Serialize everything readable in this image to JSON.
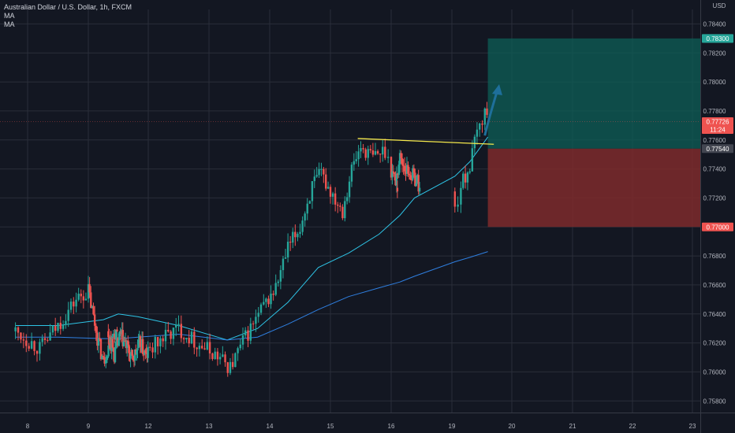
{
  "header": {
    "symbol": "Australian Dollar / U.S. Dollar, 1h, FXCM",
    "indicators": [
      "MA",
      "MA"
    ]
  },
  "price_axis": {
    "currency": "USD"
  },
  "colors": {
    "background": "#131722",
    "grid": "#2a2e39",
    "up": "#26a69a",
    "down": "#ef5350",
    "ma_fast": "#2ec4e6",
    "ma_slow": "#2f7fe0",
    "trendline": "#f5e94c",
    "profit_zone": "#0d5f57",
    "loss_zone": "#7e2a2c",
    "arrow": "#1e6f9a",
    "axis_text": "#b2b5be"
  },
  "chart_data": {
    "type": "candlestick",
    "title": "Australian Dollar / U.S. Dollar, 1h, FXCM",
    "x_ticks": [
      "8",
      "9",
      "12",
      "13",
      "14",
      "15",
      "16",
      "19",
      "20",
      "21",
      "22",
      "23"
    ],
    "y_ticks": [
      "0.75800",
      "0.76000",
      "0.76200",
      "0.76400",
      "0.76600",
      "0.76800",
      "0.77000",
      "0.77200",
      "0.77400",
      "0.77600",
      "0.77800",
      "0.78000",
      "0.78200",
      "0.78400"
    ],
    "ylim": [
      0.7572,
      0.785
    ],
    "grid": true,
    "price_path_days": [
      [
        7.8,
        0.7628
      ],
      [
        8.2,
        0.7616
      ],
      [
        8.5,
        0.7632
      ],
      [
        8.8,
        0.765
      ],
      [
        9.0,
        0.7656
      ],
      [
        9.3,
        0.7624
      ],
      [
        9.5,
        0.7607
      ],
      [
        9.8,
        0.7628
      ],
      [
        10.0,
        0.7626
      ],
      [
        10.3,
        0.7612
      ],
      [
        10.6,
        0.7625
      ],
      [
        10.9,
        0.7618
      ],
      [
        11.2,
        0.7608
      ],
      [
        11.6,
        0.762
      ],
      [
        11.9,
        0.761
      ],
      [
        12.2,
        0.7622
      ],
      [
        12.5,
        0.763
      ],
      [
        12.8,
        0.762
      ],
      [
        13.1,
        0.7612
      ],
      [
        13.35,
        0.7603
      ],
      [
        13.6,
        0.7624
      ],
      [
        13.9,
        0.7645
      ],
      [
        14.1,
        0.7658
      ],
      [
        14.3,
        0.7685
      ],
      [
        14.5,
        0.77
      ],
      [
        14.7,
        0.7728
      ],
      [
        14.85,
        0.7736
      ],
      [
        15.0,
        0.7725
      ],
      [
        15.2,
        0.7712
      ],
      [
        15.35,
        0.774
      ],
      [
        15.5,
        0.7755
      ],
      [
        15.7,
        0.7748
      ],
      [
        15.9,
        0.7753
      ],
      [
        16.0,
        0.774
      ],
      [
        16.15,
        0.7732
      ],
      [
        16.3,
        0.7748
      ],
      [
        16.5,
        0.774
      ],
      [
        16.7,
        0.7736
      ],
      [
        16.9,
        0.7732
      ],
      [
        17.05,
        0.772
      ],
      [
        19.05,
        0.7712
      ],
      [
        19.15,
        0.7728
      ],
      [
        19.3,
        0.7742
      ],
      [
        19.42,
        0.7765
      ],
      [
        19.55,
        0.778
      ],
      [
        19.62,
        0.7773
      ]
    ],
    "series": [
      {
        "name": "MA",
        "type": "line",
        "points": [
          [
            7.8,
            0.7632
          ],
          [
            8.5,
            0.7632
          ],
          [
            9.5,
            0.7636
          ],
          [
            10.5,
            0.764
          ],
          [
            11.5,
            0.7638
          ],
          [
            12.5,
            0.7632
          ],
          [
            13.3,
            0.7622
          ],
          [
            13.8,
            0.763
          ],
          [
            14.3,
            0.7648
          ],
          [
            14.8,
            0.7672
          ],
          [
            15.3,
            0.7682
          ],
          [
            15.8,
            0.7695
          ],
          [
            16.3,
            0.7708
          ],
          [
            16.8,
            0.772
          ],
          [
            19.05,
            0.7735
          ],
          [
            19.3,
            0.7745
          ],
          [
            19.6,
            0.7762
          ]
        ]
      },
      {
        "name": "MA",
        "type": "line",
        "points": [
          [
            7.8,
            0.7624
          ],
          [
            8.5,
            0.7624
          ],
          [
            9.5,
            0.7623
          ],
          [
            10.5,
            0.7623
          ],
          [
            11.5,
            0.7624
          ],
          [
            12.5,
            0.7626
          ],
          [
            13.3,
            0.7622
          ],
          [
            13.8,
            0.7624
          ],
          [
            14.3,
            0.7633
          ],
          [
            14.8,
            0.7643
          ],
          [
            15.3,
            0.7652
          ],
          [
            15.8,
            0.7658
          ],
          [
            16.3,
            0.7662
          ],
          [
            16.8,
            0.7666
          ],
          [
            19.05,
            0.7676
          ],
          [
            19.3,
            0.7679
          ],
          [
            19.6,
            0.7683
          ]
        ]
      }
    ],
    "trendline": {
      "from": [
        15.45,
        0.7761
      ],
      "to": [
        19.7,
        0.7757
      ]
    },
    "position": {
      "type": "long",
      "entry": 0.7754,
      "target": 0.783,
      "stop": 0.77,
      "x_range": [
        19.6,
        23.15
      ]
    },
    "current_price": 0.77726,
    "countdown": "11:24",
    "price_labels": [
      {
        "value": "0.78300",
        "color": "#26a69a"
      },
      {
        "value": "0.77726",
        "color": "#ef5350"
      },
      {
        "value": "11:24",
        "color": "#ef5350"
      },
      {
        "value": "0.77540",
        "color": "#434651"
      },
      {
        "value": "0.77000",
        "color": "#ef5350"
      }
    ]
  }
}
